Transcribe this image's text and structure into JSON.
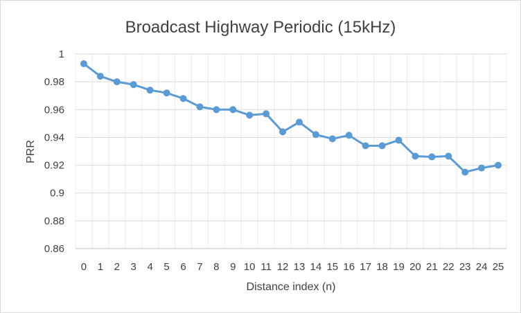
{
  "chart_data": {
    "type": "line",
    "title": "Broadcast Highway Periodic (15kHz)",
    "xlabel": "Distance index (n)",
    "ylabel": "PRR",
    "categories": [
      "0",
      "1",
      "2",
      "3",
      "4",
      "5",
      "6",
      "7",
      "8",
      "9",
      "10",
      "11",
      "12",
      "13",
      "14",
      "15",
      "16",
      "17",
      "18",
      "19",
      "20",
      "21",
      "22",
      "23",
      "24",
      "25"
    ],
    "series": [
      {
        "values": [
          0.993,
          0.984,
          0.98,
          0.978,
          0.974,
          0.972,
          0.968,
          0.962,
          0.96,
          0.96,
          0.956,
          0.957,
          0.944,
          0.951,
          0.942,
          0.939,
          0.9415,
          0.934,
          0.934,
          0.938,
          0.9265,
          0.926,
          0.9265,
          0.915,
          0.918,
          0.92
        ]
      }
    ],
    "ylim": [
      0.86,
      1.0
    ],
    "yticks": [
      "0.86",
      "0.88",
      "0.9",
      "0.92",
      "0.94",
      "0.96",
      "0.98",
      "1"
    ],
    "grid": true,
    "legend": "none",
    "colors": {
      "line": "#5b9bd5",
      "grid": "#d9d9d9",
      "text": "#404040"
    }
  }
}
